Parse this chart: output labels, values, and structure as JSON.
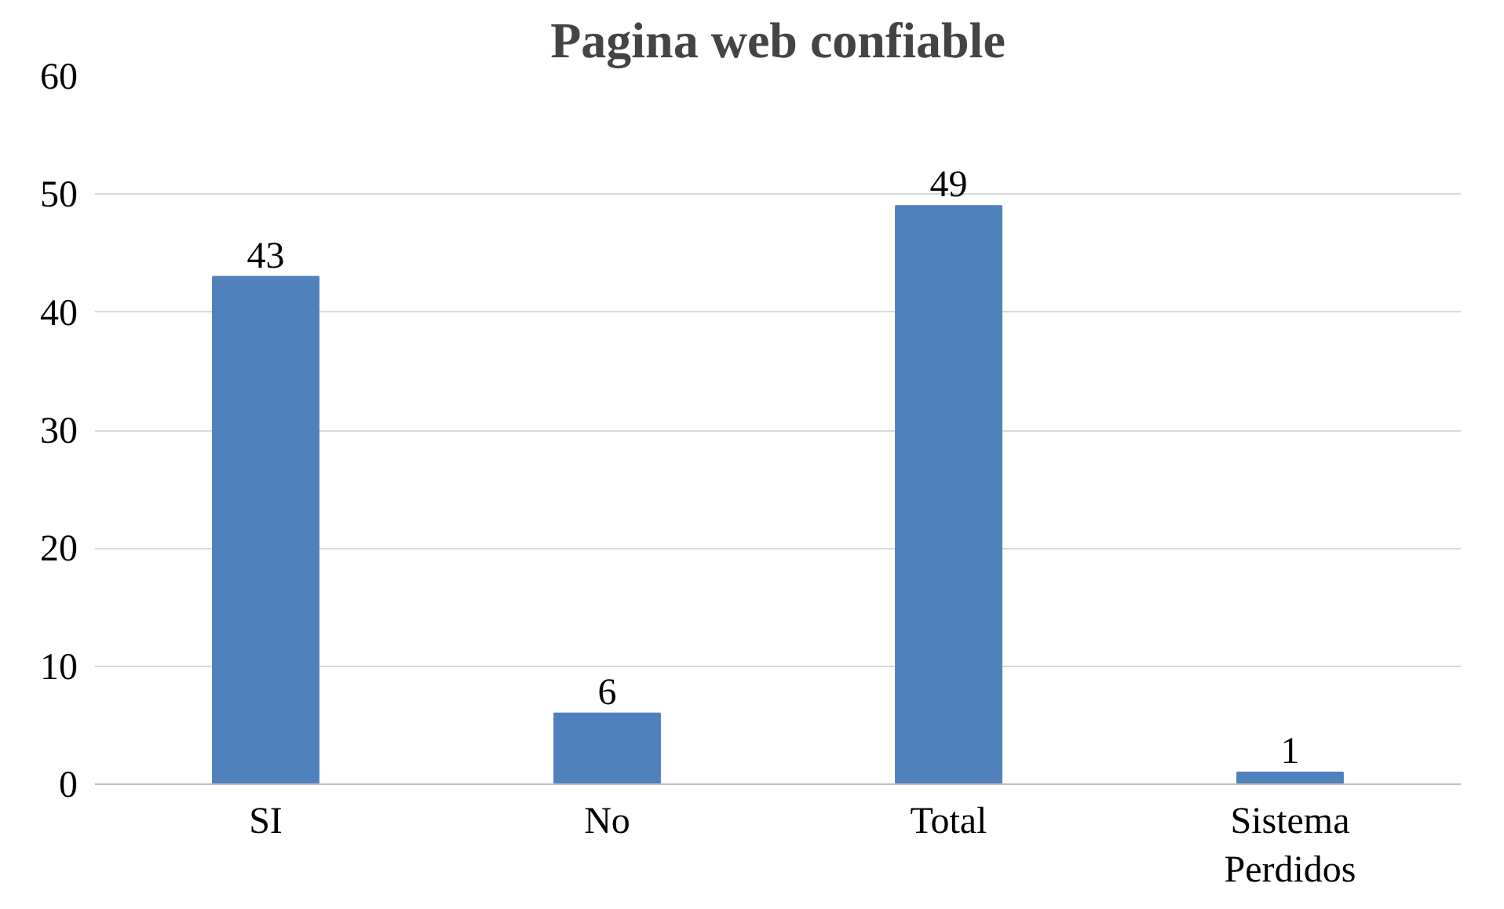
{
  "chart_data": {
    "type": "bar",
    "title": "Pagina web confiable",
    "categories": [
      "SI",
      "No",
      "Total",
      "Sistema\nPerdidos"
    ],
    "values": [
      43,
      6,
      49,
      1
    ],
    "color": "#4f81bd",
    "ylim": [
      0,
      60
    ],
    "yticks": [
      0,
      10,
      20,
      30,
      40,
      50,
      60
    ],
    "grid": "y",
    "data_labels": true
  }
}
